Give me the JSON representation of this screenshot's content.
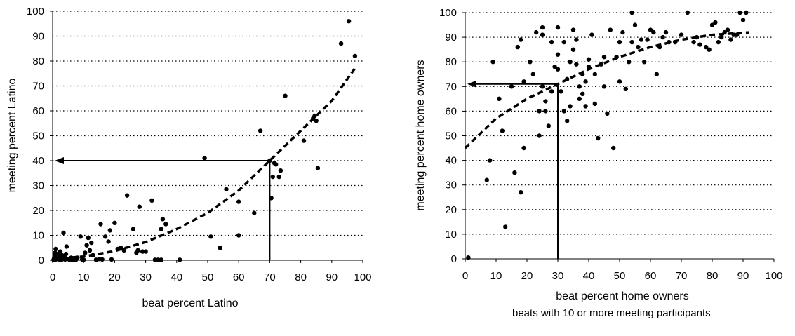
{
  "footnote": "beats with 10 or more meeting participants",
  "chart_data": [
    {
      "type": "scatter",
      "title": "",
      "xlabel": "beat percent Latino",
      "ylabel": "meeting percent Latino",
      "xlim": [
        0,
        100
      ],
      "ylim": [
        0,
        100
      ],
      "xticks": [
        "0",
        "10",
        "20",
        "30",
        "40",
        "50",
        "60",
        "70",
        "80",
        "90",
        "100"
      ],
      "yticks": [
        "0",
        "10",
        "20",
        "30",
        "40",
        "50",
        "60",
        "70",
        "80",
        "90",
        "100"
      ],
      "grid": "horizontal dotted",
      "points": [
        [
          0.3,
          0.2
        ],
        [
          0.5,
          1
        ],
        [
          0.6,
          2
        ],
        [
          0.8,
          3
        ],
        [
          1,
          4.5
        ],
        [
          1,
          0.3
        ],
        [
          1.2,
          1.5
        ],
        [
          1.5,
          0.6
        ],
        [
          1.8,
          2.5
        ],
        [
          2,
          0.3
        ],
        [
          2.2,
          1.2
        ],
        [
          2.5,
          3.5
        ],
        [
          2.8,
          0.2
        ],
        [
          3,
          2
        ],
        [
          3.2,
          0.5
        ],
        [
          3.5,
          11
        ],
        [
          3.8,
          1.5
        ],
        [
          4,
          0.3
        ],
        [
          4.3,
          2.5
        ],
        [
          4.5,
          5.5
        ],
        [
          5,
          0.5
        ],
        [
          5.5,
          0.2
        ],
        [
          6,
          1
        ],
        [
          6.5,
          0.2
        ],
        [
          7,
          0.5
        ],
        [
          7.5,
          0.2
        ],
        [
          8,
          1
        ],
        [
          9,
          9.5
        ],
        [
          9.5,
          0.3
        ],
        [
          10,
          0.2
        ],
        [
          10.5,
          3
        ],
        [
          11,
          6
        ],
        [
          11.5,
          9
        ],
        [
          12,
          4
        ],
        [
          12.5,
          7
        ],
        [
          13,
          2
        ],
        [
          14,
          0.2
        ],
        [
          15,
          0.5
        ],
        [
          15.5,
          14.5
        ],
        [
          16,
          0.3
        ],
        [
          17,
          9.5
        ],
        [
          18,
          7.5
        ],
        [
          18.5,
          12
        ],
        [
          19,
          0.3
        ],
        [
          20,
          15
        ],
        [
          21,
          4.5
        ],
        [
          22,
          5
        ],
        [
          23,
          4
        ],
        [
          24,
          26
        ],
        [
          26,
          12.5
        ],
        [
          27,
          3
        ],
        [
          27.5,
          4
        ],
        [
          28,
          21.5
        ],
        [
          29,
          3.5
        ],
        [
          30,
          3.5
        ],
        [
          32,
          24
        ],
        [
          33,
          0.2
        ],
        [
          34,
          0.2
        ],
        [
          35,
          0.2
        ],
        [
          35,
          12.5
        ],
        [
          35.5,
          16.5
        ],
        [
          36.5,
          14.5
        ],
        [
          41,
          0.2
        ],
        [
          49,
          41
        ],
        [
          51,
          9.5
        ],
        [
          54,
          5
        ],
        [
          56,
          28.5
        ],
        [
          60,
          23.5
        ],
        [
          60,
          10
        ],
        [
          65,
          19
        ],
        [
          67,
          52
        ],
        [
          70,
          40
        ],
        [
          70.5,
          25
        ],
        [
          71,
          33.5
        ],
        [
          71.5,
          39
        ],
        [
          72,
          38.5
        ],
        [
          73,
          33.5
        ],
        [
          73.5,
          36
        ],
        [
          75,
          66
        ],
        [
          81,
          48
        ],
        [
          84,
          57
        ],
        [
          84.5,
          58
        ],
        [
          85,
          56
        ],
        [
          85.5,
          37
        ],
        [
          93,
          87
        ],
        [
          95.5,
          96
        ],
        [
          97.5,
          82
        ]
      ],
      "trendline": {
        "type": "quadratic",
        "x": [
          0,
          10,
          20,
          30,
          40,
          50,
          60,
          70,
          80,
          90,
          98
        ],
        "y": [
          0.5,
          1.5,
          3.7,
          7.3,
          12.5,
          19,
          28,
          40,
          52,
          64,
          78
        ]
      },
      "guide": {
        "x": 70,
        "y": 40
      }
    },
    {
      "type": "scatter",
      "title": "",
      "xlabel": "beat percent home owners",
      "ylabel": "meeting percent home owners",
      "xlim": [
        0,
        100
      ],
      "ylim": [
        0,
        100
      ],
      "xticks": [
        "0",
        "10",
        "20",
        "30",
        "40",
        "50",
        "60",
        "70",
        "80",
        "90",
        "100"
      ],
      "yticks": [
        "0",
        "10",
        "20",
        "30",
        "40",
        "50",
        "60",
        "70",
        "80",
        "90",
        "100"
      ],
      "grid": "horizontal dotted",
      "points": [
        [
          1,
          0.5
        ],
        [
          7,
          32
        ],
        [
          8,
          40
        ],
        [
          9,
          80
        ],
        [
          11,
          65
        ],
        [
          12,
          52
        ],
        [
          13,
          13
        ],
        [
          15,
          70
        ],
        [
          16,
          35
        ],
        [
          17,
          86
        ],
        [
          18,
          27
        ],
        [
          18,
          89
        ],
        [
          19,
          45
        ],
        [
          19,
          72
        ],
        [
          21,
          80
        ],
        [
          22,
          75
        ],
        [
          23,
          92
        ],
        [
          24,
          50
        ],
        [
          24,
          60
        ],
        [
          25,
          70
        ],
        [
          25,
          91
        ],
        [
          25,
          94
        ],
        [
          26,
          60
        ],
        [
          26,
          64
        ],
        [
          27,
          54
        ],
        [
          28,
          68
        ],
        [
          28,
          88
        ],
        [
          29,
          78
        ],
        [
          30,
          94
        ],
        [
          30,
          83
        ],
        [
          30,
          77
        ],
        [
          31,
          68
        ],
        [
          32,
          88
        ],
        [
          32,
          60
        ],
        [
          33,
          56
        ],
        [
          33,
          73
        ],
        [
          34,
          62
        ],
        [
          34,
          80
        ],
        [
          35,
          93
        ],
        [
          35,
          85
        ],
        [
          36,
          89
        ],
        [
          36,
          79
        ],
        [
          37,
          70
        ],
        [
          37,
          65
        ],
        [
          38,
          75
        ],
        [
          38,
          67
        ],
        [
          39,
          72
        ],
        [
          39,
          62
        ],
        [
          40,
          81
        ],
        [
          40,
          78
        ],
        [
          41,
          91
        ],
        [
          42,
          63
        ],
        [
          42,
          75
        ],
        [
          43,
          49
        ],
        [
          44,
          79
        ],
        [
          45,
          82
        ],
        [
          45,
          70
        ],
        [
          46,
          59
        ],
        [
          47,
          93
        ],
        [
          48,
          45
        ],
        [
          49,
          82
        ],
        [
          50,
          88
        ],
        [
          50,
          72
        ],
        [
          51,
          92
        ],
        [
          52,
          69
        ],
        [
          53,
          80
        ],
        [
          54,
          100
        ],
        [
          54,
          88
        ],
        [
          55,
          95
        ],
        [
          56,
          86
        ],
        [
          57,
          89
        ],
        [
          58,
          80
        ],
        [
          59,
          89
        ],
        [
          60,
          93
        ],
        [
          61,
          92
        ],
        [
          62,
          75
        ],
        [
          63,
          86
        ],
        [
          64,
          90
        ],
        [
          65,
          92
        ],
        [
          66,
          88
        ],
        [
          68,
          88
        ],
        [
          70,
          91
        ],
        [
          72,
          100
        ],
        [
          74,
          88
        ],
        [
          75,
          90
        ],
        [
          76,
          87
        ],
        [
          78,
          86
        ],
        [
          79,
          85
        ],
        [
          80,
          95
        ],
        [
          81,
          96
        ],
        [
          82,
          88
        ],
        [
          83,
          90
        ],
        [
          84,
          92
        ],
        [
          85,
          93
        ],
        [
          86,
          89
        ],
        [
          87,
          91
        ],
        [
          88,
          91
        ],
        [
          89,
          100
        ],
        [
          90,
          97
        ],
        [
          91,
          100
        ]
      ],
      "trendline": {
        "type": "logarithmic",
        "x": [
          0,
          5,
          10,
          20,
          30,
          40,
          50,
          60,
          70,
          80,
          92
        ],
        "y": [
          45,
          51,
          57,
          65,
          71,
          77,
          82,
          86,
          89,
          91,
          92
        ]
      },
      "guide": {
        "x": 30,
        "y": 71
      }
    }
  ]
}
